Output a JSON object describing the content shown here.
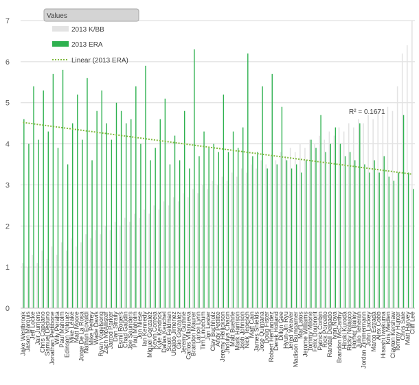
{
  "chart_data": {
    "type": "bar",
    "title": "",
    "xlabel": "",
    "ylabel": "",
    "ylim": [
      0,
      7
    ],
    "yticks": [
      "0",
      "1",
      "2",
      "3",
      "4",
      "5",
      "6",
      "7"
    ],
    "grid": true,
    "legend": {
      "placement": "top-left",
      "header": "Values",
      "entries": [
        "2013 K/BB",
        "2013 ERA",
        "Linear (2013 ERA)"
      ]
    },
    "colors": {
      "kbb": "#e3e3e3",
      "era": "#2eb14f",
      "trend": "#7fba3c",
      "grid": "#d9d9d9"
    },
    "annotation": "R² = 0.1671",
    "trendline": {
      "start": 4.52,
      "end": 3.26
    },
    "categories": [
      "Jake Westbrook",
      "Jason Marquis",
      "Jeff Locke",
      "Jair Jurrjens",
      "Chris Capuano",
      "Samuel Deduno",
      "Jonathan Pettibone",
      "Wily Peralta",
      "Paul Maholm",
      "Edinson Volquez",
      "Mike Leake",
      "Matt Moore",
      "Jorge De La Rosa",
      "Nathan Eovaldi",
      "Mike Pelfrey",
      "Wade Davis",
      "Ryan Vogelsong",
      "Zach McAllister",
      "Jarrod Parker",
      "Dan Straily",
      "Esmil Rogers",
      "Chad Gaudin",
      "Joe Saunders",
      "Paul Maholm",
      "Jon Niese",
      "Ian Kennedy",
      "Miguel Gonzalez",
      "Kevin Correia",
      "Kyle Kendrick",
      "Dallas Keuchel",
      "Scott Feldman",
      "Ubaldo Jimenez",
      "Gio Gonzalez",
      "Jeremy Guthrie",
      "Carlos Villanueva",
      "Brandon Maurer",
      "Lance Lynn",
      "Tim Lincecum",
      "Jon Lester",
      "Clay Buchholz",
      "Andy Pettitte",
      "Jeremy Hellickson",
      "Jhoulys Chacin",
      "Matt Buehrle",
      "Mark Harrison",
      "Josh Johnson",
      "Nick Tepesch",
      "Matt Cain",
      "James Shields",
      "Jose Quintana",
      "Doug Fister",
      "Robert Hernandez",
      "Derek Holland",
      "Dillon Gee",
      "Hyun-Jin Ryu",
      "Jered Weaver",
      "Madison Bumgarner",
      "Mat Latos",
      "Jerome Williams",
      "Tommy Milone",
      "Felix Doubront",
      "Patrick Corbin",
      "Rick Porcello",
      "Randall Delgado",
      "Ivan Nova",
      "Brandon McCarthy",
      "Hiroki Kuroda",
      "Ricky Nolasco",
      "Homer Bailey",
      "Julio Teheran",
      "Jordan Zimmermann",
      "John Lackey",
      "Marco Estrada",
      "Alex Cobb",
      "Hisashi Iwakuma",
      "Kris Medlen",
      "Clayton Kershaw",
      "Tommy Hunter",
      "Chris Sale",
      "Matt Harvey",
      "Cliff Lee"
    ],
    "series": [
      {
        "name": "2013 K/BB",
        "values": [
          1.1,
          1.0,
          1.3,
          1.1,
          1.4,
          1.2,
          1.5,
          1.3,
          1.6,
          1.4,
          1.7,
          1.5,
          1.6,
          1.8,
          1.7,
          1.9,
          1.8,
          2.0,
          1.9,
          2.1,
          2.0,
          2.2,
          2.1,
          2.3,
          2.2,
          2.4,
          2.3,
          2.5,
          2.4,
          2.6,
          2.5,
          2.7,
          2.6,
          2.8,
          2.7,
          2.9,
          2.8,
          3.0,
          2.9,
          3.1,
          3.0,
          3.2,
          3.1,
          3.3,
          3.2,
          3.4,
          3.3,
          3.5,
          3.4,
          3.6,
          3.5,
          3.7,
          3.6,
          3.8,
          3.7,
          3.9,
          3.8,
          4.0,
          3.9,
          4.1,
          4.0,
          4.2,
          4.1,
          4.3,
          4.2,
          4.4,
          4.3,
          4.5,
          4.4,
          4.6,
          4.5,
          4.7,
          4.6,
          4.8,
          4.7,
          4.9,
          4.8,
          5.4,
          6.2,
          6.4,
          7.0
        ]
      },
      {
        "name": "2013 ERA",
        "values": [
          4.6,
          4.0,
          5.4,
          4.1,
          5.3,
          4.3,
          5.7,
          3.9,
          5.8,
          3.5,
          4.5,
          5.2,
          4.1,
          5.6,
          3.6,
          4.8,
          5.3,
          4.5,
          4.1,
          5.0,
          4.8,
          4.5,
          4.6,
          5.4,
          4.0,
          5.9,
          3.6,
          3.9,
          4.6,
          5.1,
          3.5,
          4.2,
          3.6,
          4.8,
          3.4,
          6.3,
          3.7,
          4.3,
          3.9,
          4.0,
          3.8,
          5.2,
          3.8,
          4.3,
          3.9,
          4.4,
          6.2,
          3.7,
          3.8,
          5.4,
          3.4,
          5.7,
          3.5,
          4.9,
          3.6,
          3.4,
          3.5,
          3.3,
          3.6,
          4.1,
          3.9,
          4.7,
          3.8,
          4.0,
          4.4,
          4.0,
          3.7,
          3.8,
          3.6,
          4.5,
          3.5,
          3.3,
          3.6,
          3.3,
          3.7,
          3.2,
          3.1,
          3.3,
          4.7,
          3.3,
          2.9
        ]
      }
    ]
  }
}
